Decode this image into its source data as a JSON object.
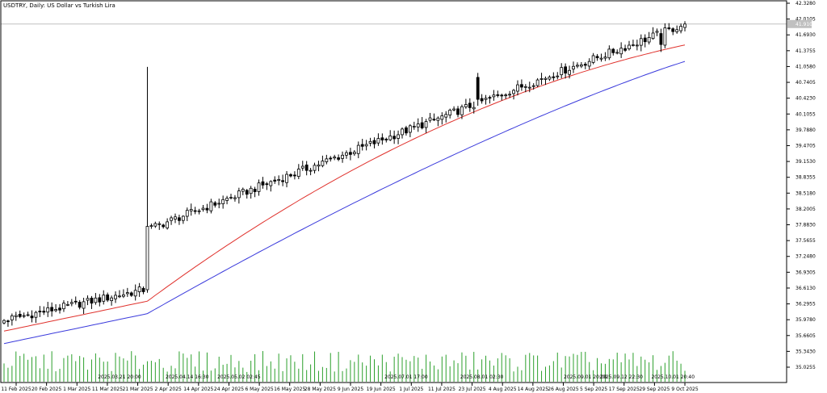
{
  "chart_title": "USDTRY, Daily:  US Dollar vs Turkish Lira",
  "colors": {
    "background": "#ffffff",
    "frame": "#000000",
    "candle_up_fill": "#ffffff",
    "candle_down_fill": "#000000",
    "candle_line": "#000000",
    "ma_fast": "#e0322d",
    "ma_slow": "#3b3bdc",
    "volume": "#2ca02c",
    "current_price_line": "#c0c0c0",
    "current_price_tag": "#c0c0c0"
  },
  "chart_data": {
    "type": "candlestick",
    "title": "USDTRY, Daily:  US Dollar vs Turkish Lira",
    "symbol": "USDTRY",
    "timeframe": "Daily",
    "y_range": [
      35.0255,
      42.328
    ],
    "price_ticks": [
      "42.3280",
      "42.0105",
      "41.6930",
      "41.3755",
      "41.0580",
      "40.7405",
      "40.4230",
      "40.1055",
      "39.7880",
      "39.4705",
      "39.1530",
      "38.8355",
      "38.5180",
      "38.2005",
      "37.8830",
      "37.5655",
      "37.2480",
      "36.9305",
      "36.6130",
      "36.2955",
      "35.9780",
      "35.6605",
      "35.3430",
      "35.0255"
    ],
    "current_price": "41.9105",
    "date_ticks": [
      "11 Feb 2025",
      "20 Feb 2025",
      "1 Mar 2025",
      "11 Mar 2025",
      "21 Mar 2025",
      "2 Apr 2025",
      "14 Apr 2025",
      "24 Apr 2025",
      "6 May 2025",
      "16 May 2025",
      "28 May 2025",
      "9 Jun 2025",
      "19 Jun 2025",
      "1 Jul 2025",
      "11 Jul 2025",
      "23 Jul 2025",
      "4 Aug 2025",
      "14 Aug 2025",
      "26 Aug 2025",
      "5 Sep 2025",
      "17 Sep 2025",
      "29 Sep 2025",
      "9 Oct 2025"
    ],
    "period_separator_labels": [
      "2025.03.21 20:00",
      "2025.04.14 16:30",
      "2025.05.02 02:45",
      "2025.07.01 17:00",
      "2025.08.01 02:30",
      "2025.09.01 20:00",
      "2025.09.12 22:30",
      "2025.10.01 20:40"
    ],
    "indicators": [
      "moving average (red)",
      "moving average (blue)",
      "volumes (green)"
    ],
    "start_price": 35.97,
    "end_price": 41.9105,
    "num_bars": 172,
    "spike_index": 36,
    "spike_high": 41.05,
    "jump_close": 37.82,
    "drop_index": 119,
    "drop_high": 40.93,
    "drop_low": 40.27,
    "dip_index": 165,
    "dip_low": 41.35,
    "ma_fast_start": 35.75,
    "ma_fast_end": 41.49,
    "ma_slow_start": 35.5,
    "ma_slow_end": 41.16
  }
}
